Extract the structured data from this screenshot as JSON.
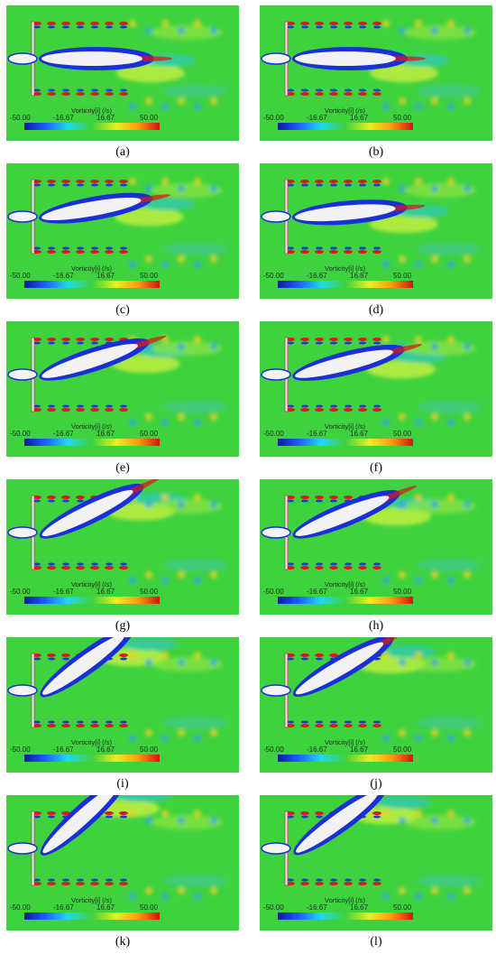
{
  "figure": {
    "colorbar": {
      "title": "Vorticity[i] (/s)",
      "ticks": [
        "-50.00",
        "-16.67",
        "16.67",
        "50.00"
      ]
    },
    "panels": [
      {
        "id": "a",
        "caption": "(a)"
      },
      {
        "id": "b",
        "caption": "(b)"
      },
      {
        "id": "c",
        "caption": "(c)"
      },
      {
        "id": "d",
        "caption": "(d)"
      },
      {
        "id": "e",
        "caption": "(e)"
      },
      {
        "id": "f",
        "caption": "(f)"
      },
      {
        "id": "g",
        "caption": "(g)"
      },
      {
        "id": "h",
        "caption": "(h)"
      },
      {
        "id": "i",
        "caption": "(i)"
      },
      {
        "id": "j",
        "caption": "(j)"
      },
      {
        "id": "k",
        "caption": "(k)"
      },
      {
        "id": "l",
        "caption": "(l)"
      }
    ],
    "colors": {
      "background": "#3fd23f",
      "negative": "#1a2fd8",
      "positive": "#d81a1a",
      "body": "#f2f2f2"
    }
  }
}
